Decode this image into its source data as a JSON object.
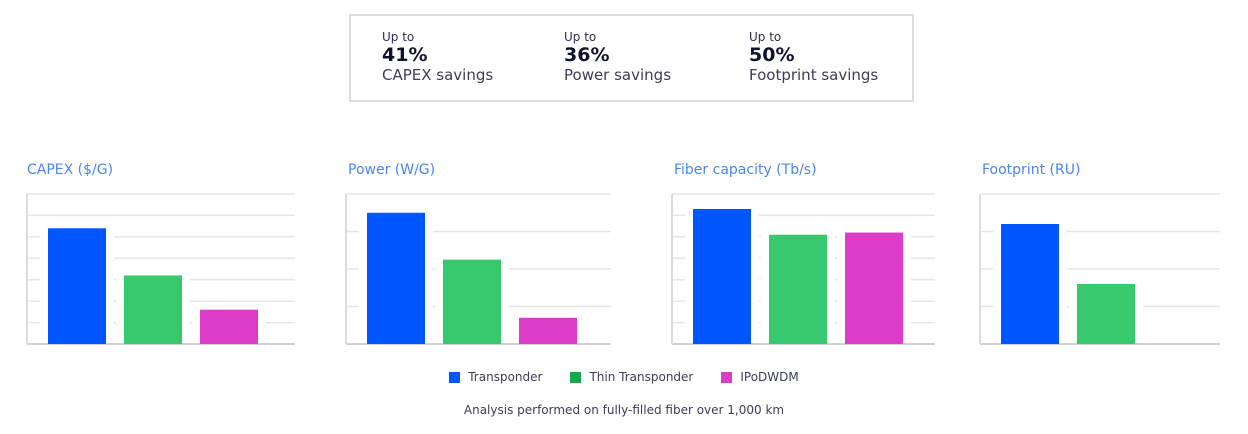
{
  "summary": [
    {
      "prefix": "Up to",
      "value": "41%",
      "label": "CAPEX savings"
    },
    {
      "prefix": "Up to",
      "value": "36%",
      "label": "Power savings"
    },
    {
      "prefix": "Up to",
      "value": "50%",
      "label": "Footprint savings"
    }
  ],
  "colors": {
    "Transponder": "#0057ff",
    "Thin Transponder": "#38c96e",
    "IPoDWDM": "#dd3cc8",
    "legend_green": "#16a84a",
    "title": "#4a86e8",
    "grid": "#e6e6e6"
  },
  "chart_data": [
    {
      "type": "bar",
      "title": "CAPEX ($/G)",
      "categories": [
        "Transponder",
        "Thin Transponder",
        "IPoDWDM"
      ],
      "values": [
        5.4,
        3.2,
        1.6
      ],
      "ylim": [
        0,
        7
      ],
      "grid": true
    },
    {
      "type": "bar",
      "title": "Power (W/G)",
      "categories": [
        "Transponder",
        "Thin Transponder",
        "IPoDWDM"
      ],
      "values": [
        3.5,
        2.25,
        0.7
      ],
      "ylim": [
        0,
        4
      ],
      "grid": true
    },
    {
      "type": "bar",
      "title": "Fiber capacity (Tb/s)",
      "categories": [
        "Transponder",
        "Thin Transponder",
        "IPoDWDM"
      ],
      "values": [
        6.3,
        5.1,
        5.2
      ],
      "ylim": [
        0,
        7
      ],
      "grid": true
    },
    {
      "type": "bar",
      "title": "Footprint (RU)",
      "categories": [
        "Transponder",
        "Thin Transponder"
      ],
      "values": [
        3.2,
        1.6
      ],
      "ylim": [
        0,
        4
      ],
      "grid": true
    }
  ],
  "legend": {
    "placement": "bottom",
    "items": [
      "Transponder",
      "Thin Transponder",
      "IPoDWDM"
    ]
  },
  "footnote": "Analysis performed on fully-filled fiber over 1,000 km"
}
